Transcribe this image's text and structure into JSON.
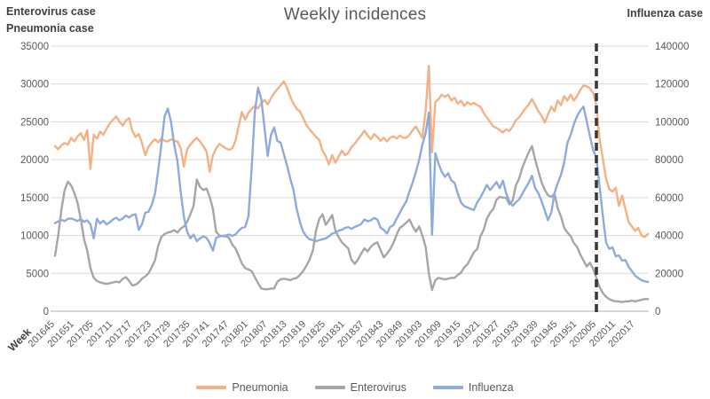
{
  "title": "Weekly incidences",
  "left_axis_header": {
    "line1": "Enterovirus case",
    "line2": "Pneumonia case"
  },
  "right_axis_header": "Influenza case",
  "colors": {
    "pneumonia": "#F4B183",
    "enterovirus": "#A6A6A6",
    "influenza": "#8FAADC",
    "gridline": "#D9D9D9",
    "axis_line": "#BFBFBF",
    "tick_text": "#595959",
    "dashed_line": "#3a3a3a"
  },
  "chart_data": {
    "type": "line",
    "title": "Weekly incidences",
    "grid": "horizontal",
    "x_axis": {
      "title": "Week",
      "start_week": "201645",
      "end_week": "202021",
      "points_per_series": 185,
      "weeks_per_point": 1,
      "ticks_every_n_points": 6,
      "tick_labels": [
        "201645",
        "201651",
        "201705",
        "201711",
        "201717",
        "201723",
        "201729",
        "201735",
        "201741",
        "201747",
        "201801",
        "201807",
        "201813",
        "201819",
        "201825",
        "201831",
        "201837",
        "201843",
        "201849",
        "201903",
        "201909",
        "201915",
        "201921",
        "201927",
        "201933",
        "201939",
        "201945",
        "201951",
        "202005",
        "202011",
        "202017"
      ]
    },
    "y_axis_left": {
      "label_lines": [
        "Enterovirus case",
        "Pneumonia case"
      ],
      "min": 0,
      "max": 35000,
      "tick_step": 5000,
      "tick_labels": [
        "0",
        "5000",
        "10000",
        "15000",
        "20000",
        "25000",
        "30000",
        "35000"
      ]
    },
    "y_axis_right": {
      "label": "Influenza case",
      "min": 0,
      "max": 140000,
      "tick_step": 20000,
      "tick_labels": [
        "0",
        "20000",
        "40000",
        "60000",
        "80000",
        "100000",
        "120000",
        "140000"
      ]
    },
    "annotation": {
      "type": "vertical-dashed-line",
      "at_week": "202005"
    },
    "legend": {
      "position": "bottom",
      "entries": [
        "Pneumonia",
        "Enterovirus",
        "Influenza"
      ]
    },
    "series": [
      {
        "name": "Pneumonia",
        "axis": "left",
        "color": "#F4B183",
        "values": [
          21800,
          21400,
          21900,
          22200,
          22000,
          22900,
          22400,
          23100,
          23500,
          22600,
          23900,
          18800,
          23300,
          22800,
          23700,
          23300,
          24100,
          24800,
          25300,
          25700,
          25000,
          24500,
          25200,
          25500,
          23800,
          23000,
          23400,
          22200,
          20600,
          21700,
          22300,
          22700,
          22300,
          22800,
          22500,
          22400,
          22700,
          22500,
          22400,
          21500,
          19100,
          21400,
          22000,
          22500,
          22900,
          22400,
          21800,
          21100,
          18400,
          20600,
          21500,
          22100,
          21800,
          21500,
          21300,
          21500,
          22500,
          24500,
          26300,
          25300,
          26200,
          26700,
          27100,
          26800,
          27500,
          27900,
          27300,
          28100,
          28800,
          29300,
          29800,
          30350,
          29500,
          28300,
          27400,
          26700,
          26400,
          25500,
          24600,
          24000,
          23500,
          23000,
          22600,
          21200,
          20500,
          19400,
          20600,
          19600,
          20400,
          21200,
          20600,
          20900,
          21700,
          22100,
          22700,
          23200,
          23850,
          23200,
          22700,
          23400,
          23000,
          22500,
          22900,
          22400,
          22900,
          23100,
          22800,
          23200,
          22900,
          22900,
          23300,
          23900,
          24400,
          23600,
          22900,
          26500,
          32400,
          21000,
          27600,
          28000,
          28600,
          28300,
          28600,
          27800,
          28200,
          27400,
          27800,
          27100,
          27600,
          27300,
          27500,
          27200,
          27000,
          26200,
          25600,
          25000,
          24400,
          24200,
          23900,
          23600,
          24000,
          23800,
          24400,
          25200,
          25600,
          26200,
          26800,
          27300,
          28000,
          27200,
          26400,
          25800,
          24900,
          26000,
          27000,
          26400,
          27800,
          27200,
          28400,
          27800,
          28600,
          27800,
          28400,
          29200,
          29800,
          29700,
          29400,
          28800,
          27200,
          22700,
          20100,
          17500,
          16100,
          15800,
          16300,
          13900,
          15300,
          13500,
          11800,
          11200,
          10600,
          11000,
          10000,
          9800,
          10200
        ]
      },
      {
        "name": "Enterovirus",
        "axis": "left",
        "color": "#A6A6A6",
        "values": [
          7300,
          10000,
          13500,
          16000,
          17100,
          16600,
          15600,
          14300,
          12200,
          9500,
          8000,
          5700,
          4400,
          4000,
          3800,
          3700,
          3600,
          3700,
          3800,
          3900,
          3800,
          4300,
          4500,
          4000,
          3400,
          3500,
          3800,
          4300,
          4600,
          5000,
          5800,
          6700,
          8600,
          9800,
          10200,
          10400,
          10500,
          10700,
          10400,
          10900,
          11200,
          11800,
          12800,
          13900,
          17400,
          16400,
          16000,
          16200,
          15100,
          13500,
          10500,
          10000,
          9900,
          9900,
          9700,
          8800,
          8300,
          7300,
          6300,
          5700,
          5500,
          5300,
          4500,
          3700,
          3000,
          2900,
          2900,
          3000,
          3000,
          3900,
          4200,
          4300,
          4200,
          4100,
          4300,
          4400,
          4800,
          5300,
          6000,
          6800,
          8000,
          10650,
          12200,
          12800,
          11400,
          12000,
          12700,
          10650,
          9800,
          9100,
          8700,
          8300,
          6800,
          6250,
          6800,
          7600,
          8300,
          7900,
          8500,
          8900,
          9100,
          8100,
          7100,
          7600,
          8200,
          9000,
          10100,
          11000,
          11300,
          11700,
          12100,
          11200,
          10500,
          11200,
          10000,
          8500,
          5000,
          2800,
          4100,
          4400,
          4300,
          4200,
          4300,
          4400,
          4400,
          4800,
          5100,
          5800,
          6200,
          7000,
          7800,
          8200,
          9900,
          10700,
          12200,
          13000,
          13500,
          14700,
          15100,
          15000,
          15000,
          14100,
          14600,
          16600,
          17500,
          18900,
          20000,
          21000,
          21800,
          20000,
          18500,
          17000,
          16000,
          15300,
          15100,
          15500,
          13600,
          12500,
          11000,
          10400,
          9900,
          9000,
          8500,
          7500,
          6700,
          5900,
          6400,
          5600,
          4400,
          3200,
          2400,
          1900,
          1600,
          1400,
          1300,
          1300,
          1200,
          1300,
          1300,
          1400,
          1300,
          1400,
          1500,
          1600,
          1600
        ]
      },
      {
        "name": "Influenza",
        "axis": "right",
        "color": "#8FAADC",
        "values": [
          46500,
          47500,
          48200,
          47600,
          48800,
          49000,
          48300,
          47600,
          48800,
          47200,
          48000,
          46000,
          38500,
          48800,
          46300,
          47800,
          45800,
          47000,
          48500,
          49400,
          48000,
          49000,
          50500,
          49500,
          50800,
          51200,
          43000,
          46000,
          52000,
          52500,
          56000,
          62000,
          74000,
          88000,
          103000,
          107000,
          100000,
          88000,
          79000,
          63000,
          50000,
          42000,
          38500,
          40500,
          37000,
          38500,
          39500,
          38800,
          36000,
          32000,
          38700,
          39500,
          39800,
          40000,
          40500,
          39800,
          40500,
          42500,
          44000,
          44500,
          50000,
          75000,
          105000,
          118000,
          112000,
          97000,
          82000,
          93000,
          97000,
          90000,
          89000,
          83000,
          77000,
          70000,
          64000,
          54000,
          47000,
          42000,
          39500,
          38000,
          37600,
          37000,
          37500,
          38000,
          38500,
          39500,
          41000,
          41500,
          42500,
          43000,
          44000,
          44400,
          43500,
          44500,
          45200,
          46000,
          48400,
          47500,
          48000,
          49200,
          48500,
          44100,
          43000,
          41000,
          44500,
          45500,
          48800,
          52000,
          55200,
          58000,
          63300,
          68000,
          73700,
          80000,
          88000,
          94000,
          105000,
          40300,
          83500,
          78000,
          73600,
          71000,
          72900,
          69000,
          67800,
          62000,
          57400,
          55500,
          54800,
          54000,
          53500,
          57400,
          60000,
          63300,
          66700,
          64000,
          66000,
          68200,
          65000,
          68900,
          62300,
          58000,
          55700,
          57500,
          59000,
          62000,
          65000,
          68000,
          71500,
          65000,
          62300,
          58000,
          53000,
          48100,
          52000,
          62300,
          67500,
          72000,
          78500,
          88800,
          93100,
          98700,
          103000,
          106000,
          108000,
          100300,
          92500,
          85000,
          81000,
          66000,
          50300,
          36300,
          32900,
          33700,
          29000,
          29500,
          26700,
          27000,
          23500,
          21200,
          18800,
          17500,
          16400,
          15800,
          15500
        ]
      }
    ]
  }
}
